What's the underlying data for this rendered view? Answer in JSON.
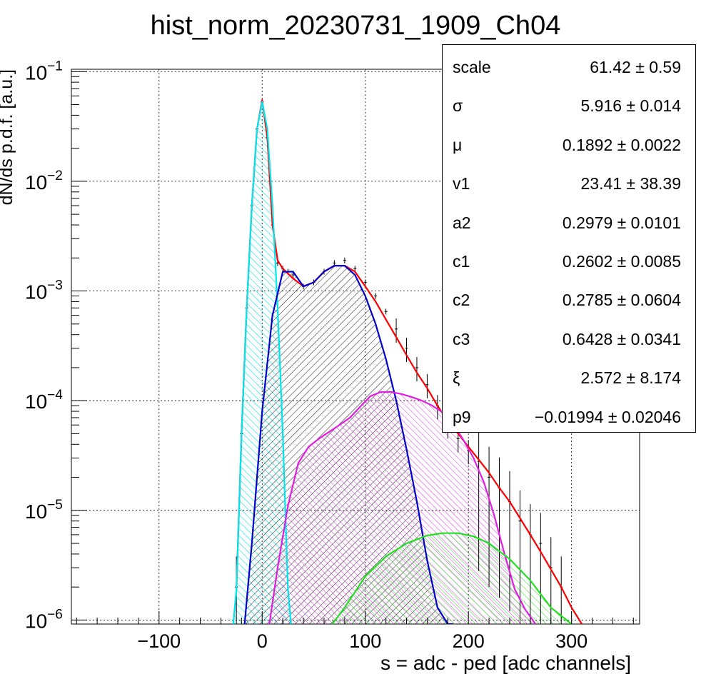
{
  "chart_data": {
    "type": "histogram-fit",
    "title": "hist_norm_20230731_1909_Ch04",
    "xlabel": "s = adc - ped [adc channels]",
    "ylabel": "dN/ds p.d.f. [a.u.]",
    "xlim": [
      -185,
      366
    ],
    "ylim": [
      9.2e-07,
      0.105
    ],
    "y_scale": "log",
    "grid": true,
    "x_ticks": [
      -100,
      0,
      100,
      200,
      300
    ],
    "x_tick_labels": [
      "−100",
      "0",
      "100",
      "200",
      "300"
    ],
    "y_ticks": [
      {
        "value": 0.1,
        "base": "10",
        "exp": "−1"
      },
      {
        "value": 0.01,
        "base": "10",
        "exp": "−2"
      },
      {
        "value": 0.001,
        "base": "10",
        "exp": "−3"
      },
      {
        "value": 0.0001,
        "base": "10",
        "exp": "−4"
      },
      {
        "value": 1e-05,
        "base": "10",
        "exp": "−5"
      },
      {
        "value": 1e-06,
        "base": "10",
        "exp": "−6"
      }
    ],
    "series": [
      {
        "key": "data",
        "color": "#000000",
        "x": [
          -25,
          -20,
          -15,
          -10,
          -5,
          0,
          5,
          10,
          15,
          20,
          25,
          30,
          40,
          50,
          60,
          70,
          80,
          90,
          100,
          110,
          120,
          130,
          140,
          150,
          160,
          170,
          180,
          190,
          200,
          210,
          220,
          230,
          240,
          250,
          260,
          270,
          280,
          290
        ],
        "y": [
          2e-06,
          5e-05,
          0.0007,
          0.006,
          0.03,
          0.053,
          0.025,
          0.004,
          0.0018,
          0.0016,
          0.0015,
          0.0014,
          0.0011,
          0.0012,
          0.0015,
          0.0018,
          0.0019,
          0.0016,
          0.0012,
          0.0009,
          0.00065,
          0.00045,
          0.0003,
          0.0002,
          0.00014,
          9e-05,
          6e-05,
          4.5e-05,
          3.5e-05,
          2.8e-05,
          2e-05,
          1.6e-05,
          1.2e-05,
          8e-06,
          6e-06,
          5e-06,
          3e-06,
          2e-06
        ]
      },
      {
        "key": "total-fit",
        "color": "#ff0000",
        "x": [
          -25,
          -20,
          -15,
          -10,
          -5,
          0,
          5,
          10,
          15,
          20,
          30,
          40,
          50,
          60,
          70,
          80,
          90,
          100,
          110,
          120,
          130,
          140,
          150,
          160,
          170,
          180,
          190,
          200,
          210,
          220,
          230,
          240,
          250,
          260,
          270,
          280,
          290,
          300,
          310
        ],
        "y": [
          1.9e-06,
          5e-05,
          0.0007,
          0.006,
          0.03,
          0.055,
          0.025,
          0.004,
          0.0019,
          0.0016,
          0.0013,
          0.0011,
          0.0012,
          0.0015,
          0.0017,
          0.0017,
          0.0015,
          0.0011,
          0.0008,
          0.00055,
          0.00038,
          0.00026,
          0.00018,
          0.00013,
          9e-05,
          6.5e-05,
          5e-05,
          3.8e-05,
          2.9e-05,
          2.2e-05,
          1.6e-05,
          1.2e-05,
          8.5e-06,
          6e-06,
          4.2e-06,
          2.9e-06,
          2e-06,
          1.3e-06,
          9.2e-07
        ]
      },
      {
        "key": "pedestal",
        "color": "#00e5ee",
        "hatch": true,
        "x": [
          -28,
          -25,
          -20,
          -15,
          -10,
          -5,
          0,
          5,
          10,
          15,
          20,
          25,
          28
        ],
        "y": [
          9.2e-07,
          1.9e-06,
          5e-05,
          0.0007,
          0.006,
          0.03,
          0.053,
          0.03,
          0.006,
          0.0007,
          5e-05,
          1.9e-06,
          9.2e-07
        ]
      },
      {
        "key": "one-pe",
        "color": "#0000cc",
        "hatch": true,
        "x": [
          -17,
          -10,
          0,
          10,
          20,
          30,
          40,
          50,
          60,
          70,
          80,
          90,
          100,
          110,
          120,
          130,
          140,
          150,
          160,
          170,
          180,
          185
        ],
        "y": [
          9.2e-07,
          5e-06,
          8e-05,
          0.0006,
          0.0015,
          0.0015,
          0.0011,
          0.0012,
          0.0015,
          0.0017,
          0.0017,
          0.0014,
          0.0009,
          0.0005,
          0.00024,
          0.0001,
          3.6e-05,
          1.2e-05,
          3.5e-06,
          1.3e-06,
          9.2e-07,
          9.2e-07
        ]
      },
      {
        "key": "two-pe",
        "color": "#e020e0",
        "hatch": true,
        "x": [
          7,
          15,
          25,
          35,
          45,
          55,
          65,
          75,
          85,
          95,
          105,
          115,
          125,
          135,
          145,
          155,
          165,
          175,
          185,
          195,
          205,
          215,
          225,
          235,
          245,
          255,
          265
        ],
        "y": [
          9.2e-07,
          3e-06,
          1.1e-05,
          2.7e-05,
          3.8e-05,
          4.5e-05,
          5.2e-05,
          6e-05,
          7e-05,
          8.8e-05,
          0.00011,
          0.00012,
          0.00012,
          0.000115,
          0.000108,
          0.0001,
          9e-05,
          7.8e-05,
          6.2e-05,
          4.4e-05,
          3e-05,
          1.8e-05,
          9e-06,
          4e-06,
          1.9e-06,
          1.25e-06,
          9.2e-07
        ]
      },
      {
        "key": "three-pe",
        "color": "#20e020",
        "hatch": true,
        "x": [
          68,
          80,
          100,
          120,
          140,
          160,
          175,
          190,
          205,
          220,
          240,
          260,
          280,
          300
        ],
        "y": [
          9.2e-07,
          1.3e-06,
          2.5e-06,
          3.8e-06,
          5e-06,
          5.9e-06,
          6.2e-06,
          6.2e-06,
          5.8e-06,
          5e-06,
          3.6e-06,
          2.3e-06,
          1.3e-06,
          9.2e-07
        ]
      }
    ],
    "stats": [
      {
        "name": "scale",
        "value": "61.42 ± 0.59"
      },
      {
        "name": "σ",
        "value": "5.916 ± 0.014"
      },
      {
        "name": "μ",
        "value": "0.1892 ± 0.0022"
      },
      {
        "name": "v1",
        "value": "23.41 ± 38.39"
      },
      {
        "name": "a2",
        "value": "0.2979 ± 0.0101"
      },
      {
        "name": "c1",
        "value": "0.2602 ± 0.0085"
      },
      {
        "name": "c2",
        "value": "0.2785 ± 0.0604"
      },
      {
        "name": "c3",
        "value": "0.6428 ± 0.0341"
      },
      {
        "name": "ξ",
        "value": "2.572 ± 8.174"
      },
      {
        "name": "p9",
        "value": "−0.01994 ± 0.02046"
      }
    ]
  }
}
